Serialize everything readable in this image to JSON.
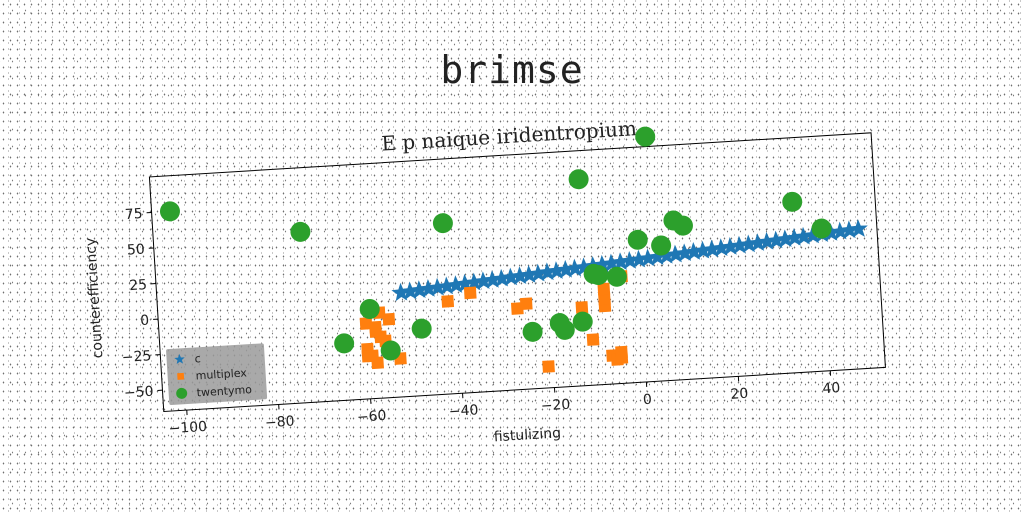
{
  "heading": "brimse",
  "chart_data": {
    "type": "scatter",
    "title": "E p naique iridentropium",
    "xlabel": "fistulizing",
    "ylabel": "counterefficiency",
    "xlim": [
      -105,
      52
    ],
    "ylim": [
      -65,
      100
    ],
    "xticks": [
      -100,
      -80,
      -60,
      -40,
      -20,
      0,
      20,
      40
    ],
    "yticks": [
      -50,
      -25,
      0,
      25,
      50,
      75
    ],
    "grid": false,
    "legend": "lower-left",
    "series": [
      {
        "name": "c",
        "marker": "star",
        "color": "#1f77b4",
        "x": [
          -52,
          -50,
          -48,
          -46,
          -44,
          -42,
          -40,
          -38,
          -36,
          -34,
          -32,
          -30,
          -28,
          -26,
          -24,
          -22,
          -20,
          -18,
          -16,
          -14,
          -12,
          -10,
          -8,
          -6,
          -4,
          -2,
          0,
          2,
          4,
          6,
          8,
          10,
          12,
          14,
          16,
          18,
          20,
          22,
          24,
          26,
          28,
          30,
          32,
          34,
          36,
          38,
          40,
          42,
          44,
          46,
          48
        ],
        "y": [
          8,
          8.5,
          9,
          9.5,
          10,
          10.5,
          11,
          11.5,
          12,
          12.5,
          13,
          13.5,
          14,
          14.5,
          15,
          15.5,
          16,
          16.5,
          17,
          17.5,
          18,
          18.5,
          19,
          19.5,
          20,
          20.5,
          21,
          21.5,
          22,
          22.5,
          23,
          23.5,
          24,
          24.5,
          25,
          25.5,
          26,
          26.5,
          27,
          27.5,
          28,
          28.5,
          29,
          29.5,
          30,
          30.5,
          31,
          31.5,
          32,
          32.5,
          33
        ]
      },
      {
        "name": "multiplex",
        "marker": "square",
        "color": "#ff7f0e",
        "x": [
          -60,
          -58,
          -57,
          -56,
          -55,
          -60,
          -59,
          -58,
          -60,
          -58,
          -57,
          -53,
          -42,
          -37,
          -27,
          -25,
          -21,
          -13,
          -11,
          -8,
          -8,
          -7,
          -6,
          -5,
          -5,
          -4,
          -8
        ],
        "y": [
          -12,
          -18,
          -22,
          -25,
          -10,
          -30,
          -35,
          -40,
          -35,
          -15,
          -5,
          -38,
          0,
          5,
          -8,
          -5,
          -50,
          -10,
          -33,
          -10,
          -5,
          -45,
          -48,
          -47,
          -43,
          10,
          2
        ],
        "size": 12
      },
      {
        "name": "twentymo",
        "marker": "circle",
        "color": "#2ca02c",
        "x": [
          -101,
          -73,
          -65,
          -59,
          -55,
          -48,
          -42,
          -24,
          -18,
          -17,
          -12,
          -10,
          -5,
          0,
          3,
          5,
          8,
          10,
          34,
          40,
          -13,
          -9
        ],
        "y": [
          75,
          55,
          -25,
          -2,
          -32,
          -18,
          55,
          -25,
          -20,
          -25,
          80,
          13,
          10,
          35,
          107,
          30,
          47,
          43,
          55,
          35,
          -20,
          12
        ],
        "size": 10
      }
    ]
  }
}
